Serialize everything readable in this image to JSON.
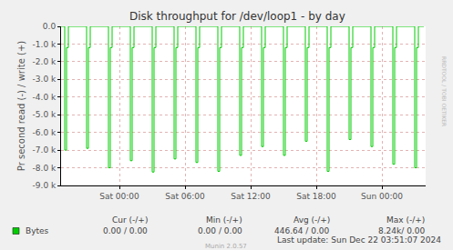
{
  "chart_data": {
    "type": "line",
    "title": "Disk throughput for /dev/loop1 - by day",
    "y_label": "Pr second read (-) / write (+)",
    "categories": [
      null,
      null,
      null,
      null,
      null,
      null,
      null,
      null,
      null,
      null,
      null,
      null,
      null,
      null,
      null,
      null,
      null,
      null,
      null,
      null,
      null,
      null,
      null,
      null,
      null,
      null,
      null,
      null,
      null,
      null,
      null,
      null,
      "Sat 00:00",
      null,
      null,
      null,
      null,
      null,
      null,
      null,
      null,
      null,
      null,
      null,
      null,
      null,
      null,
      null,
      null,
      null,
      null,
      null,
      null,
      null,
      null,
      null,
      null,
      null,
      null,
      null,
      null,
      null,
      null,
      null,
      null,
      null,
      null,
      null,
      "Sat 06:00",
      null,
      null,
      null,
      null,
      null,
      null,
      null,
      null,
      null,
      null,
      null,
      null,
      null,
      null,
      null,
      null,
      null,
      null,
      null,
      null,
      null,
      null,
      null,
      null,
      null,
      null,
      null,
      null,
      null,
      null,
      null,
      null,
      null,
      null,
      null,
      "Sat 12:00",
      null,
      null,
      null,
      null,
      null,
      null,
      null,
      null,
      null,
      null,
      null,
      null,
      null,
      null,
      null,
      null,
      null,
      null,
      null,
      null,
      null,
      null,
      null,
      null,
      null,
      null,
      null,
      null,
      null,
      null,
      null,
      null,
      null,
      null,
      null,
      "Sat 18:00",
      null,
      null,
      null,
      null,
      null,
      null,
      null,
      null,
      null,
      null,
      null,
      null,
      null,
      null,
      null,
      null,
      null,
      null,
      null,
      null,
      null,
      null,
      null,
      null,
      null,
      null,
      null,
      null,
      null,
      null,
      null,
      null,
      null,
      null,
      null,
      "Sun 00:00",
      null,
      null,
      null,
      null,
      null,
      null,
      null,
      null,
      null,
      null,
      null,
      null,
      null,
      null,
      null,
      null,
      null,
      null,
      null,
      null,
      null,
      null,
      null,
      null
    ],
    "series": [
      {
        "name": "Bytes",
        "color": "#00cc00",
        "values": [
          0,
          0,
          -7000,
          -1200,
          0,
          0,
          0,
          0,
          0,
          0,
          0,
          0,
          0,
          0,
          -6900,
          -1200,
          0,
          0,
          0,
          0,
          0,
          0,
          0,
          0,
          0,
          0,
          -8000,
          -1200,
          0,
          0,
          0,
          0,
          0,
          0,
          0,
          0,
          0,
          0,
          -7600,
          -1200,
          0,
          0,
          0,
          0,
          0,
          0,
          0,
          0,
          0,
          0,
          -8240,
          -1200,
          0,
          0,
          0,
          0,
          0,
          0,
          0,
          0,
          0,
          0,
          -7500,
          -1200,
          0,
          0,
          0,
          0,
          0,
          0,
          0,
          0,
          0,
          0,
          -7700,
          -1200,
          0,
          0,
          0,
          0,
          0,
          0,
          0,
          0,
          0,
          0,
          -8200,
          -1200,
          0,
          0,
          0,
          0,
          0,
          0,
          0,
          0,
          0,
          0,
          -7300,
          -1200,
          0,
          0,
          0,
          0,
          0,
          0,
          0,
          0,
          0,
          0,
          -6800,
          -1200,
          0,
          0,
          0,
          0,
          0,
          0,
          0,
          0,
          0,
          0,
          -7300,
          -1200,
          0,
          0,
          0,
          0,
          0,
          0,
          0,
          0,
          0,
          0,
          -6500,
          -1200,
          0,
          0,
          0,
          0,
          0,
          0,
          0,
          0,
          0,
          0,
          -8200,
          -1200,
          0,
          0,
          0,
          0,
          0,
          0,
          0,
          0,
          0,
          0,
          -6400,
          -1200,
          0,
          0,
          0,
          0,
          0,
          0,
          0,
          0,
          0,
          0,
          -6800,
          -1200,
          0,
          0,
          0,
          0,
          0,
          0,
          0,
          0,
          0,
          0,
          -7800,
          -1200,
          0,
          0,
          0,
          0,
          0,
          0,
          0,
          0,
          0,
          0,
          -8000,
          -1200,
          0,
          0,
          0,
          0,
          null
        ]
      }
    ],
    "ylim": [
      -9000,
      0
    ],
    "yticks": [
      {
        "value": -9000,
        "label": "-9.0 k"
      },
      {
        "value": -8000,
        "label": "-8.0 k"
      },
      {
        "value": -7000,
        "label": "-7.0 k"
      },
      {
        "value": -6000,
        "label": "-6.0 k"
      },
      {
        "value": -5000,
        "label": "-5.0 k"
      },
      {
        "value": -4000,
        "label": "-4.0 k"
      },
      {
        "value": -3000,
        "label": "-3.0 k"
      },
      {
        "value": -2000,
        "label": "-2.0 k"
      },
      {
        "value": -1000,
        "label": "-1.0 k"
      },
      {
        "value": 0,
        "label": "0.0"
      }
    ],
    "grid": true,
    "summary": {
      "headers": [
        "Cur (-/+)",
        "Min (-/+)",
        "Avg (-/+)",
        "Max (-/+)"
      ],
      "rows": [
        {
          "name": "Bytes",
          "cells": [
            "0.00 / 0.00",
            "0.00 / 0.00",
            "446.64 / 0.00",
            "8.24k/ 0.00"
          ]
        }
      ]
    },
    "last_update": "Last update: Sun Dec 22 03:51:07 2024",
    "footer": "Munin 2.0.57",
    "watermark": "RRDTOOL / TOBI OETIKER"
  }
}
